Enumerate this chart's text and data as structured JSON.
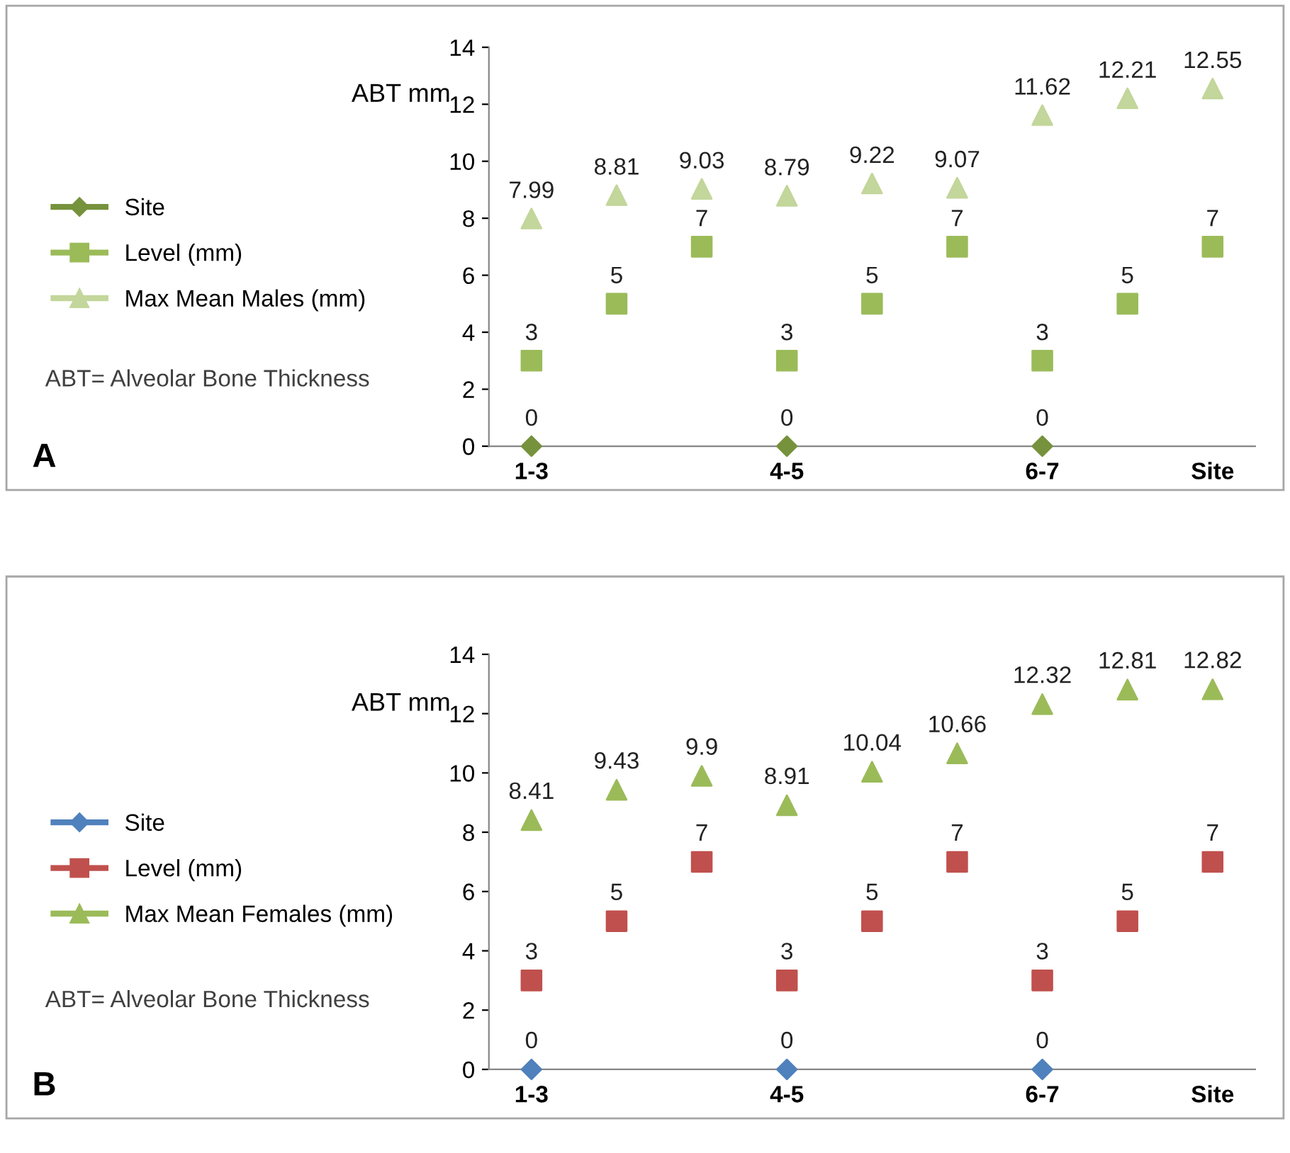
{
  "chart_data": [
    {
      "type": "scatter",
      "ylabel": "ABT mm",
      "categories": [
        "1-3",
        null,
        null,
        "4-5",
        null,
        null,
        "6-7",
        null,
        "Site"
      ],
      "ylim": [
        0,
        14
      ],
      "yticks": [
        0,
        2,
        4,
        6,
        8,
        10,
        12,
        14
      ],
      "grid": false,
      "legend": "left",
      "data_labels": true,
      "annotations": [
        "ABT= Alveolar Bone Thickness",
        "A"
      ],
      "series": [
        {
          "name": "Site",
          "color": "#76923c",
          "marker": "diamond",
          "values": [
            0,
            null,
            null,
            0,
            null,
            null,
            0,
            null,
            null
          ]
        },
        {
          "name": "Level (mm)",
          "color": "#9bbb59",
          "marker": "square",
          "values": [
            3,
            5,
            7,
            3,
            5,
            7,
            3,
            5,
            7
          ]
        },
        {
          "name": "Max Mean Males (mm)",
          "color": "#c3d69b",
          "marker": "triangle",
          "values": [
            7.99,
            8.81,
            9.03,
            8.79,
            9.22,
            9.07,
            11.62,
            12.21,
            12.55
          ]
        }
      ]
    },
    {
      "type": "scatter",
      "ylabel": "ABT mm",
      "categories": [
        "1-3",
        null,
        null,
        "4-5",
        null,
        null,
        "6-7",
        null,
        "Site"
      ],
      "ylim": [
        0,
        14
      ],
      "yticks": [
        0,
        2,
        4,
        6,
        8,
        10,
        12,
        14
      ],
      "grid": false,
      "legend": "left",
      "data_labels": true,
      "annotations": [
        "ABT= Alveolar Bone Thickness",
        "B"
      ],
      "series": [
        {
          "name": "Site",
          "color": "#4f81bd",
          "marker": "diamond",
          "values": [
            0,
            null,
            null,
            0,
            null,
            null,
            0,
            null,
            null
          ]
        },
        {
          "name": "Level (mm)",
          "color": "#c0504d",
          "marker": "square",
          "values": [
            3,
            5,
            7,
            3,
            5,
            7,
            3,
            5,
            7
          ]
        },
        {
          "name": "Max Mean Females (mm)",
          "color": "#9bbb59",
          "marker": "triangle",
          "values": [
            8.41,
            9.43,
            9.9,
            8.91,
            10.04,
            10.66,
            12.32,
            12.81,
            12.82
          ]
        }
      ]
    }
  ]
}
